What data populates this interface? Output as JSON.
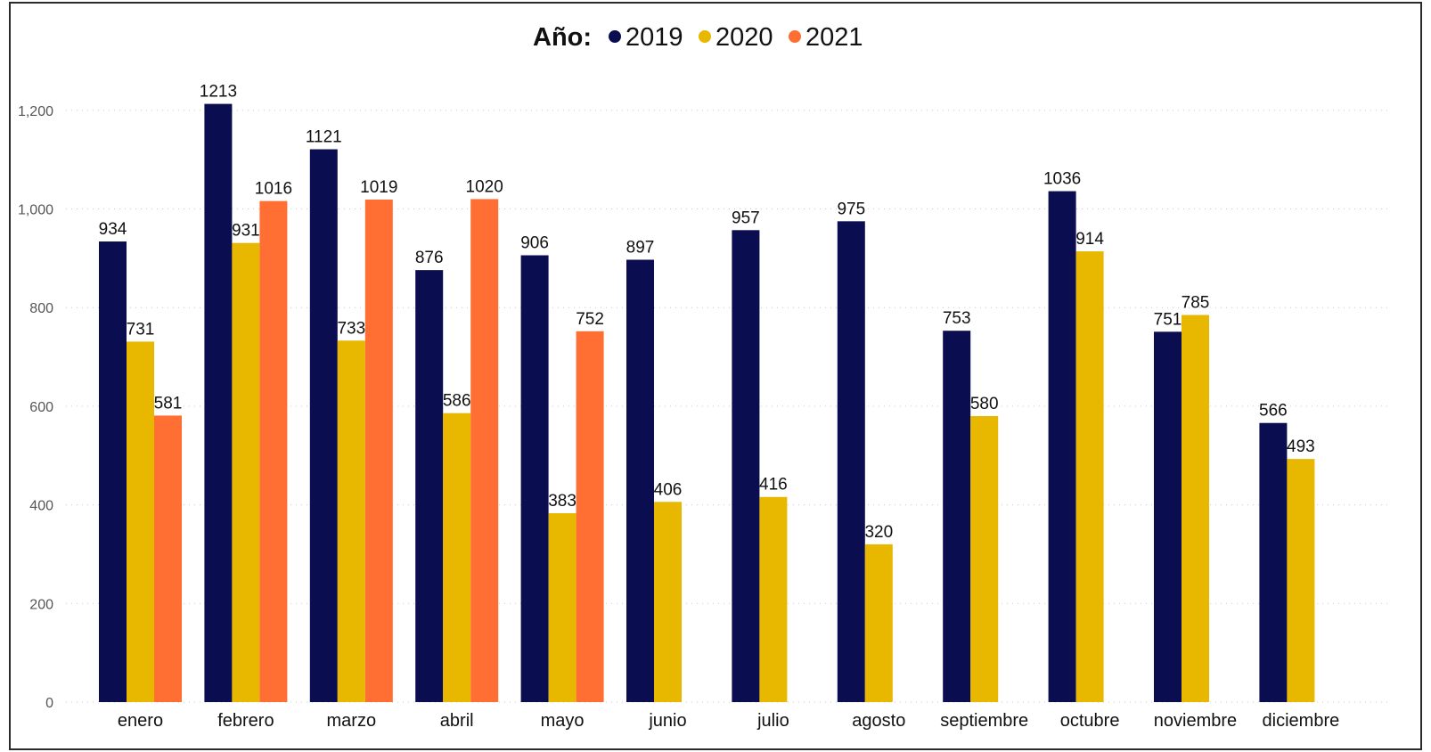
{
  "chart_data": {
    "type": "bar",
    "legend_title": "Año:",
    "legend_position": "top-center",
    "grid": true,
    "categories": [
      "enero",
      "febrero",
      "marzo",
      "abril",
      "mayo",
      "junio",
      "julio",
      "agosto",
      "septiembre",
      "octubre",
      "noviembre",
      "diciembre"
    ],
    "series": [
      {
        "name": "2019",
        "color": "#0a0d4f",
        "values": [
          934,
          1213,
          1121,
          876,
          906,
          897,
          957,
          975,
          753,
          1036,
          751,
          566
        ]
      },
      {
        "name": "2020",
        "color": "#e8b800",
        "values": [
          731,
          931,
          733,
          586,
          383,
          406,
          416,
          320,
          580,
          914,
          785,
          493
        ]
      },
      {
        "name": "2021",
        "color": "#ff6e33",
        "values": [
          581,
          1016,
          1019,
          1020,
          752,
          null,
          null,
          null,
          null,
          null,
          null,
          null
        ]
      }
    ],
    "yticks": [
      {
        "value": 0,
        "label": "0"
      },
      {
        "value": 200,
        "label": "200"
      },
      {
        "value": 400,
        "label": "400"
      },
      {
        "value": 600,
        "label": "600"
      },
      {
        "value": 800,
        "label": "800"
      },
      {
        "value": 1000,
        "label": "1,000"
      },
      {
        "value": 1200,
        "label": "1,200"
      }
    ],
    "ylim": [
      0,
      1200
    ]
  }
}
